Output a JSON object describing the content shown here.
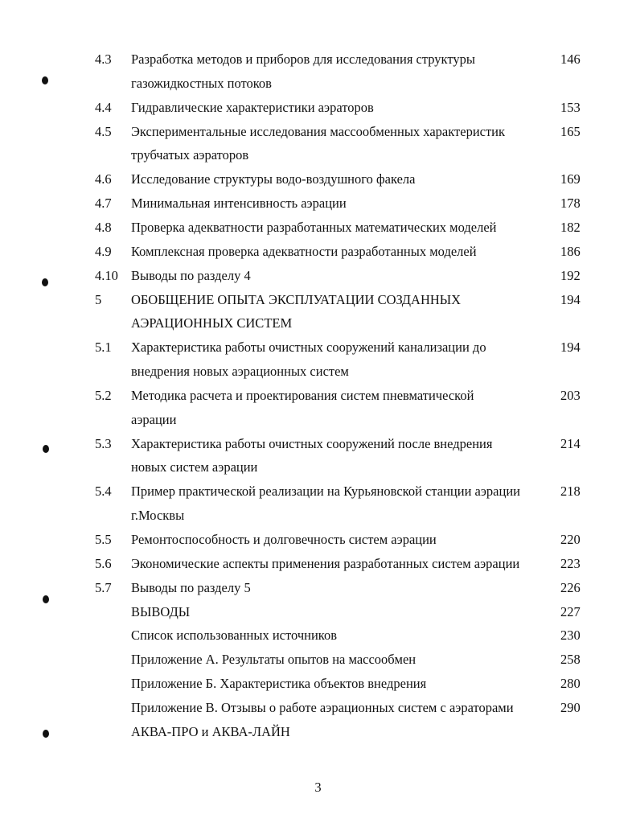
{
  "toc": [
    {
      "number": "4.3",
      "lines": [
        "Разработка методов и приборов для исследования структуры",
        "газожидкостных потоков"
      ],
      "page": "146"
    },
    {
      "number": "4.4",
      "lines": [
        "Гидравлические характеристики аэраторов"
      ],
      "page": "153"
    },
    {
      "number": "4.5",
      "lines": [
        "Экспериментальные исследования массообменных характеристик",
        "трубчатых аэраторов"
      ],
      "page": "165"
    },
    {
      "number": "4.6",
      "lines": [
        "Исследование структуры водо-воздушного факела"
      ],
      "page": "169"
    },
    {
      "number": "4.7",
      "lines": [
        "Минимальная интенсивность аэрации"
      ],
      "page": "178"
    },
    {
      "number": "4.8",
      "lines": [
        "Проверка адекватности разработанных математических моделей"
      ],
      "page": "182"
    },
    {
      "number": "4.9",
      "lines": [
        "Комплексная проверка адекватности разработанных моделей"
      ],
      "page": "186"
    },
    {
      "number": "4.10",
      "lines": [
        "Выводы по разделу 4"
      ],
      "page": "192"
    },
    {
      "number": "5",
      "lines": [
        "ОБОБЩЕНИЕ ОПЫТА ЭКСПЛУАТАЦИИ СОЗДАННЫХ",
        "АЭРАЦИОННЫХ СИСТЕМ"
      ],
      "page": "194"
    },
    {
      "number": "5.1",
      "lines": [
        "Характеристика работы очистных сооружений канализации до",
        "внедрения новых аэрационных систем"
      ],
      "page": "194"
    },
    {
      "number": "5.2",
      "lines": [
        "Методика расчета и проектирования систем пневматической",
        "аэрации"
      ],
      "page": "203"
    },
    {
      "number": "5.3",
      "lines": [
        "Характеристика работы очистных сооружений после внедрения",
        "новых систем аэрации"
      ],
      "page": "214"
    },
    {
      "number": "5.4",
      "lines": [
        "Пример практической реализации на Курьяновской станции аэрации",
        "г.Москвы"
      ],
      "page": "218"
    },
    {
      "number": "5.5",
      "lines": [
        "Ремонтоспособность и долговечность систем аэрации"
      ],
      "page": "220"
    },
    {
      "number": "5.6",
      "lines": [
        "Экономические аспекты применения разработанных систем аэрации"
      ],
      "page": "223"
    },
    {
      "number": "5.7",
      "lines": [
        "Выводы по разделу 5"
      ],
      "page": "226"
    },
    {
      "number": "",
      "lines": [
        "ВЫВОДЫ"
      ],
      "page": "227"
    },
    {
      "number": "",
      "lines": [
        "Список использованных источников"
      ],
      "page": "230"
    },
    {
      "number": "",
      "lines": [
        "Приложение А.  Результаты опытов на массообмен"
      ],
      "page": "258"
    },
    {
      "number": "",
      "lines": [
        "Приложение Б. Характеристика объектов внедрения"
      ],
      "page": "280"
    },
    {
      "number": "",
      "lines": [
        "Приложение В. Отзывы о работе  аэрационных систем с аэраторами",
        "АКВА-ПРО и АКВА-ЛАЙН"
      ],
      "page": "290"
    }
  ],
  "page_number": "3"
}
